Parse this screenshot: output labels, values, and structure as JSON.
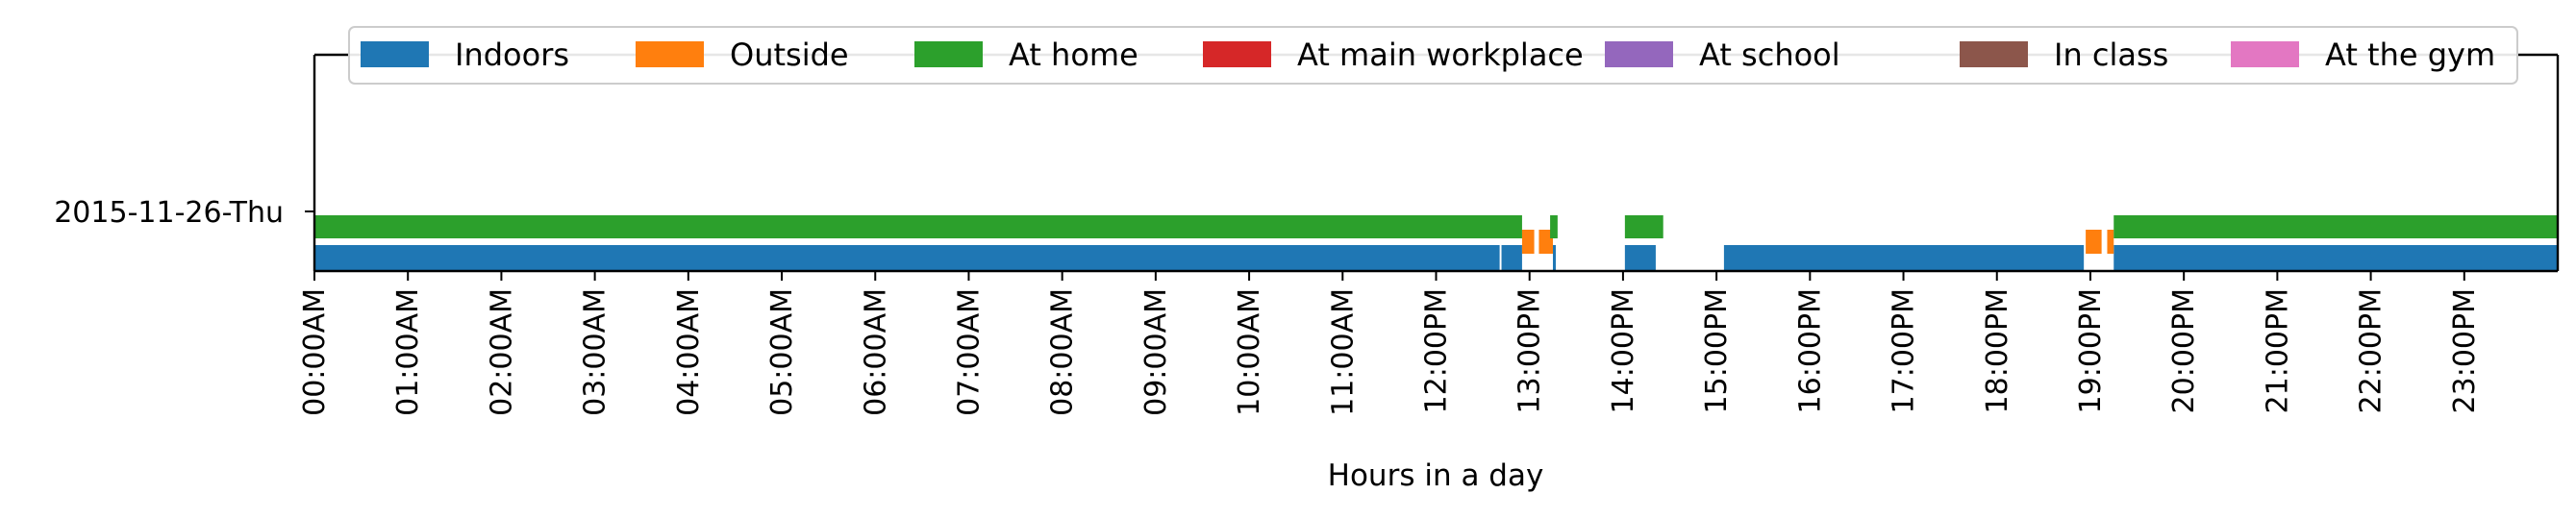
{
  "chart_data": {
    "type": "timeline",
    "xlabel": "Hours in a day",
    "xlim": [
      0,
      24
    ],
    "x_ticks": [
      {
        "value": 0,
        "label": "00:00AM"
      },
      {
        "value": 1,
        "label": "01:00AM"
      },
      {
        "value": 2,
        "label": "02:00AM"
      },
      {
        "value": 3,
        "label": "03:00AM"
      },
      {
        "value": 4,
        "label": "04:00AM"
      },
      {
        "value": 5,
        "label": "05:00AM"
      },
      {
        "value": 6,
        "label": "06:00AM"
      },
      {
        "value": 7,
        "label": "07:00AM"
      },
      {
        "value": 8,
        "label": "08:00AM"
      },
      {
        "value": 9,
        "label": "09:00AM"
      },
      {
        "value": 10,
        "label": "10:00AM"
      },
      {
        "value": 11,
        "label": "11:00AM"
      },
      {
        "value": 12,
        "label": "12:00PM"
      },
      {
        "value": 13,
        "label": "13:00PM"
      },
      {
        "value": 14,
        "label": "14:00PM"
      },
      {
        "value": 15,
        "label": "15:00PM"
      },
      {
        "value": 16,
        "label": "16:00PM"
      },
      {
        "value": 17,
        "label": "17:00PM"
      },
      {
        "value": 18,
        "label": "18:00PM"
      },
      {
        "value": 19,
        "label": "19:00PM"
      },
      {
        "value": 20,
        "label": "20:00PM"
      },
      {
        "value": 21,
        "label": "21:00PM"
      },
      {
        "value": 22,
        "label": "22:00PM"
      },
      {
        "value": 23,
        "label": "23:00PM"
      }
    ],
    "day_label": "2015-11-26-Thu",
    "legend_position": "top",
    "series": [
      {
        "name": "Indoors",
        "color": "#1f77b4",
        "lane": 0,
        "segments": [
          [
            0,
            12.68
          ],
          [
            12.7,
            12.92
          ],
          [
            13.25,
            13.28
          ],
          [
            14.02,
            14.35
          ],
          [
            15.08,
            18.93
          ],
          [
            19.25,
            24
          ]
        ]
      },
      {
        "name": "Outside",
        "color": "#ff7f0e",
        "lane": 1,
        "segments": [
          [
            12.92,
            13.05
          ],
          [
            13.1,
            13.25
          ],
          [
            18.95,
            19.12
          ],
          [
            19.18,
            19.25
          ]
        ]
      },
      {
        "name": "At home",
        "color": "#2ca02c",
        "lane": 2,
        "segments": [
          [
            0,
            12.92
          ],
          [
            13.22,
            13.3
          ],
          [
            14.02,
            14.43
          ],
          [
            19.25,
            24
          ]
        ]
      },
      {
        "name": "At main workplace",
        "color": "#d62728",
        "lane": 3,
        "segments": []
      },
      {
        "name": "At school",
        "color": "#9467bd",
        "lane": 4,
        "segments": []
      },
      {
        "name": "In class",
        "color": "#8c564b",
        "lane": 5,
        "segments": []
      },
      {
        "name": "At the gym",
        "color": "#e377c2",
        "lane": 6,
        "segments": []
      }
    ]
  }
}
